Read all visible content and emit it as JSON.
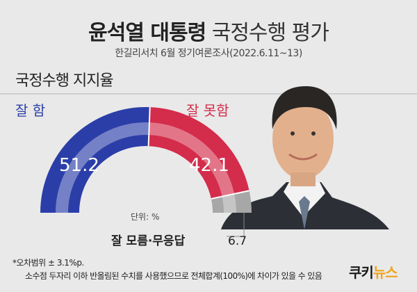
{
  "header": {
    "title_bold": "윤석열 대통령",
    "title_rest": "국정수행 평가",
    "subtitle": "한길리서치 6월 정기여론조사(2022.6.11~13)"
  },
  "section_title": "국정수행 지지율",
  "chart_data": {
    "type": "pie",
    "variant": "semicircle-donut",
    "unit_label": "단위: %",
    "slices": [
      {
        "label": "잘 함",
        "value": 51.2,
        "color": "#2b3ea8"
      },
      {
        "label": "잘 못함",
        "value": 42.1,
        "color": "#d42c4b"
      },
      {
        "label": "잘 모름·무응답",
        "value": 6.7,
        "color": "#a7a7a7"
      }
    ],
    "labels_text": {
      "good_label": "잘 함",
      "good_value": "51.2",
      "bad_label": "잘 못함",
      "bad_value": "42.1",
      "unknown_label": "잘 모름·무응답",
      "unknown_value": "6.7"
    }
  },
  "footnotes": {
    "margin_of_error": "*오차범위 ± 3.1%p.",
    "rounding_note": "소수점 두자리 이하 반올림된 수치를 사용했으므로 전체합계(100%)에 차이가 있을 수 있음"
  },
  "brand": {
    "prefix": "쿠키",
    "accent": "뉴스"
  },
  "colors": {
    "background": "#e9e9e9",
    "good": "#2b3ea8",
    "bad": "#d42c4b",
    "unknown": "#a7a7a7",
    "inner_ring": "#8289c4"
  },
  "portrait": {
    "icon": "person-portrait-icon"
  }
}
